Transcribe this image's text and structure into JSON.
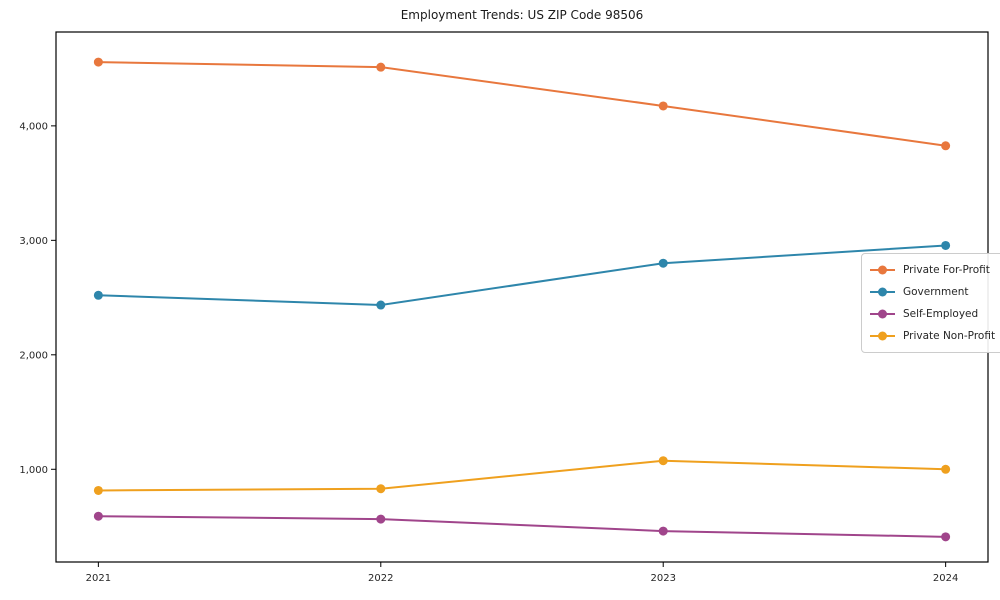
{
  "chart_data": {
    "type": "line",
    "title": "Employment Trends: US ZIP Code 98506",
    "xlabel": "",
    "ylabel": "",
    "x": [
      2021,
      2022,
      2023,
      2024
    ],
    "x_tick_labels": [
      "2021",
      "2022",
      "2023",
      "2024"
    ],
    "y_tick_values": [
      1000,
      2000,
      3000,
      4000
    ],
    "y_tick_labels": [
      "1,000",
      "2,000",
      "3,000",
      "4,000"
    ],
    "xlim": [
      2020.85,
      2024.15
    ],
    "ylim": [
      190,
      4820
    ],
    "grid": false,
    "legend_position": "center-right",
    "frame": "full-box",
    "axis_color": "#000000",
    "series": [
      {
        "name": "Private For-Profit",
        "color": "#e8773d",
        "marker": "circle",
        "values": [
          4557,
          4513,
          4174,
          3826
        ]
      },
      {
        "name": "Government",
        "color": "#2e86ab",
        "marker": "circle",
        "values": [
          2520,
          2435,
          2800,
          2955
        ]
      },
      {
        "name": "Self-Employed",
        "color": "#a0458b",
        "marker": "circle",
        "values": [
          590,
          565,
          460,
          410
        ]
      },
      {
        "name": "Private Non-Profit",
        "color": "#efa01e",
        "marker": "circle",
        "values": [
          815,
          830,
          1075,
          1000
        ]
      }
    ]
  }
}
